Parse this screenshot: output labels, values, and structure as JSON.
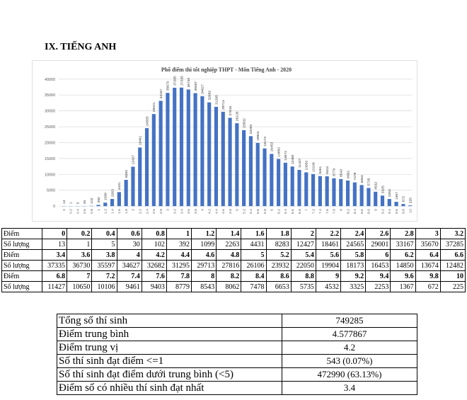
{
  "heading": "IX. TIẾNG ANH",
  "chart_data": {
    "type": "bar",
    "title": "Phổ điểm thi tốt nghiệp THPT - Môn Tiếng Anh - 2020",
    "xlabel": "",
    "ylabel": "",
    "ylim": [
      0,
      40000
    ],
    "yticks": [
      0,
      5000,
      10000,
      15000,
      20000,
      25000,
      30000,
      35000,
      40000
    ],
    "grid": true,
    "bar_color": "#4472c4",
    "categories": [
      "0",
      "0.2",
      "0.4",
      "0.6",
      "0.8",
      "1",
      "1.2",
      "1.4",
      "1.6",
      "1.8",
      "2",
      "2.2",
      "2.4",
      "2.6",
      "2.8",
      "3",
      "3.2",
      "3.4",
      "3.6",
      "3.8",
      "4",
      "4.2",
      "4.4",
      "4.6",
      "4.8",
      "5",
      "5.2",
      "5.4",
      "5.6",
      "5.8",
      "6",
      "6.2",
      "6.4",
      "6.6",
      "6.8",
      "7",
      "7.2",
      "7.4",
      "7.6",
      "7.8",
      "8",
      "8.2",
      "8.4",
      "8.6",
      "8.8",
      "9",
      "9.2",
      "9.4",
      "9.6",
      "9.8",
      "10"
    ],
    "values": [
      13,
      1,
      5,
      30,
      102,
      392,
      1099,
      2263,
      4431,
      8283,
      12427,
      18461,
      24565,
      29001,
      33167,
      35670,
      37285,
      37335,
      36730,
      35597,
      34627,
      32682,
      31295,
      29713,
      27816,
      26106,
      23932,
      22050,
      19904,
      18173,
      16453,
      14850,
      13674,
      12482,
      11427,
      10650,
      10106,
      9461,
      9403,
      8779,
      8543,
      8062,
      7478,
      6653,
      5735,
      4532,
      3325,
      2253,
      1367,
      672,
      225
    ]
  },
  "score_table": {
    "point_label": "Điểm",
    "count_label": "Số lượng",
    "rows": [
      {
        "points": [
          "0",
          "0.2",
          "0.4",
          "0.6",
          "0.8",
          "1",
          "1.2",
          "1.4",
          "1.6",
          "1.8",
          "2",
          "2.2",
          "2.4",
          "2.6",
          "2.8",
          "3",
          "3.2"
        ],
        "counts": [
          "13",
          "1",
          "5",
          "30",
          "102",
          "392",
          "1099",
          "2263",
          "4431",
          "8283",
          "12427",
          "18461",
          "24565",
          "29001",
          "33167",
          "35670",
          "37285"
        ]
      },
      {
        "points": [
          "3.4",
          "3.6",
          "3.8",
          "4",
          "4.2",
          "4.4",
          "4.6",
          "4.8",
          "5",
          "5.2",
          "5.4",
          "5.6",
          "5.8",
          "6",
          "6.2",
          "6.4",
          "6.6"
        ],
        "counts": [
          "37335",
          "36730",
          "35597",
          "34627",
          "32682",
          "31295",
          "29713",
          "27816",
          "26106",
          "23932",
          "22050",
          "19904",
          "18173",
          "16453",
          "14850",
          "13674",
          "12482"
        ]
      },
      {
        "points": [
          "6.8",
          "7",
          "7.2",
          "7.4",
          "7.6",
          "7.8",
          "8",
          "8.2",
          "8.4",
          "8.6",
          "8.8",
          "9",
          "9.2",
          "9.4",
          "9.6",
          "9.8",
          "10"
        ],
        "counts": [
          "11427",
          "10650",
          "10106",
          "9461",
          "9403",
          "8779",
          "8543",
          "8062",
          "7478",
          "6653",
          "5735",
          "4532",
          "3325",
          "2253",
          "1367",
          "672",
          "225"
        ]
      }
    ]
  },
  "summary": [
    {
      "label": "Tổng số thí sinh",
      "value": "749285"
    },
    {
      "label": "Điểm trung bình",
      "value": "4.577867"
    },
    {
      "label": "Điểm trung vị",
      "value": "4.2"
    },
    {
      "label": "Số thí sinh đạt điểm <=1",
      "value": "543 (0.07%)"
    },
    {
      "label": "Số thí sinh đạt điểm dưới trung bình (<5)",
      "value": "472990 (63.13%)"
    },
    {
      "label": "Điểm số có nhiều thí sinh đạt nhất",
      "value": "3.4"
    }
  ]
}
